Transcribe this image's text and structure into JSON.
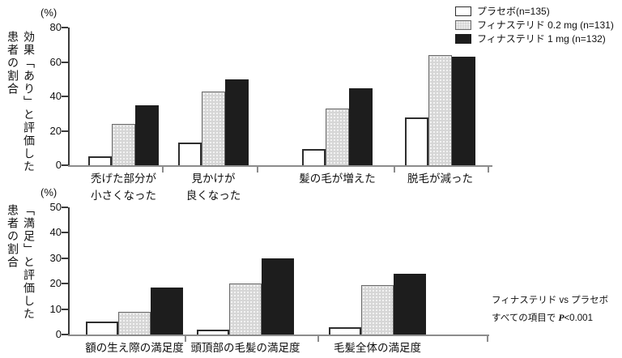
{
  "legend": {
    "items": [
      {
        "label": "プラセボ(n=135)",
        "swatch": "white",
        "color": "#ffffff"
      },
      {
        "label": "フィナステリド 0.2 mg (n=131)",
        "swatch": "dotted-gray",
        "color": "#d6d6d6"
      },
      {
        "label": "フィナステリド 1 mg (n=132)",
        "swatch": "black",
        "color": "#1d1d1d"
      }
    ]
  },
  "note": {
    "line1": "フィナステリド vs プラセボ",
    "line2_prefix": "すべての項目で ",
    "line2_p": "P",
    "line2_suffix": "<0.001"
  },
  "chart_data": [
    {
      "type": "bar",
      "title": "",
      "unit_label": "(%)",
      "ylabel": "効果「あり」と評価した患者の割合",
      "ylabel_lines": [
        "効果「あり」と評価した",
        "患者の割合"
      ],
      "ylim": [
        0,
        80
      ],
      "yticks": [
        0,
        20,
        40,
        60,
        80
      ],
      "grid": false,
      "legend_position": "top-right",
      "categories": [
        "禿げた部分が\n小さくなった",
        "見かけが\n良くなった",
        "髪の毛が増えた",
        "脱毛が減った"
      ],
      "series": [
        {
          "name": "プラセボ(n=135)",
          "color": "#ffffff",
          "values": [
            5,
            13,
            9.5,
            28
          ]
        },
        {
          "name": "フィナステリド 0.2 mg (n=131)",
          "color": "#d6d6d6",
          "values": [
            24,
            43,
            33,
            64
          ]
        },
        {
          "name": "フィナステリド 1 mg (n=132)",
          "color": "#1d1d1d",
          "values": [
            35,
            50,
            44.5,
            63
          ]
        }
      ]
    },
    {
      "type": "bar",
      "title": "",
      "unit_label": "(%)",
      "ylabel": "「満足」と評価した患者の割合",
      "ylabel_lines": [
        "「満足」と評価した",
        "患者の割合"
      ],
      "ylim": [
        0,
        50
      ],
      "yticks": [
        0,
        10,
        20,
        30,
        40,
        50
      ],
      "grid": false,
      "legend_position": "shared-top-right",
      "categories": [
        "額の生え際の満足度",
        "頭頂部の毛髪の満足度",
        "毛髪全体の満足度"
      ],
      "series": [
        {
          "name": "プラセボ(n=135)",
          "color": "#ffffff",
          "values": [
            5,
            2,
            3
          ]
        },
        {
          "name": "フィナステリド 0.2 mg (n=131)",
          "color": "#d6d6d6",
          "values": [
            9,
            20,
            19.5
          ]
        },
        {
          "name": "フィナステリド 1 mg (n=132)",
          "color": "#1d1d1d",
          "values": [
            18.5,
            30,
            24
          ]
        }
      ]
    }
  ]
}
